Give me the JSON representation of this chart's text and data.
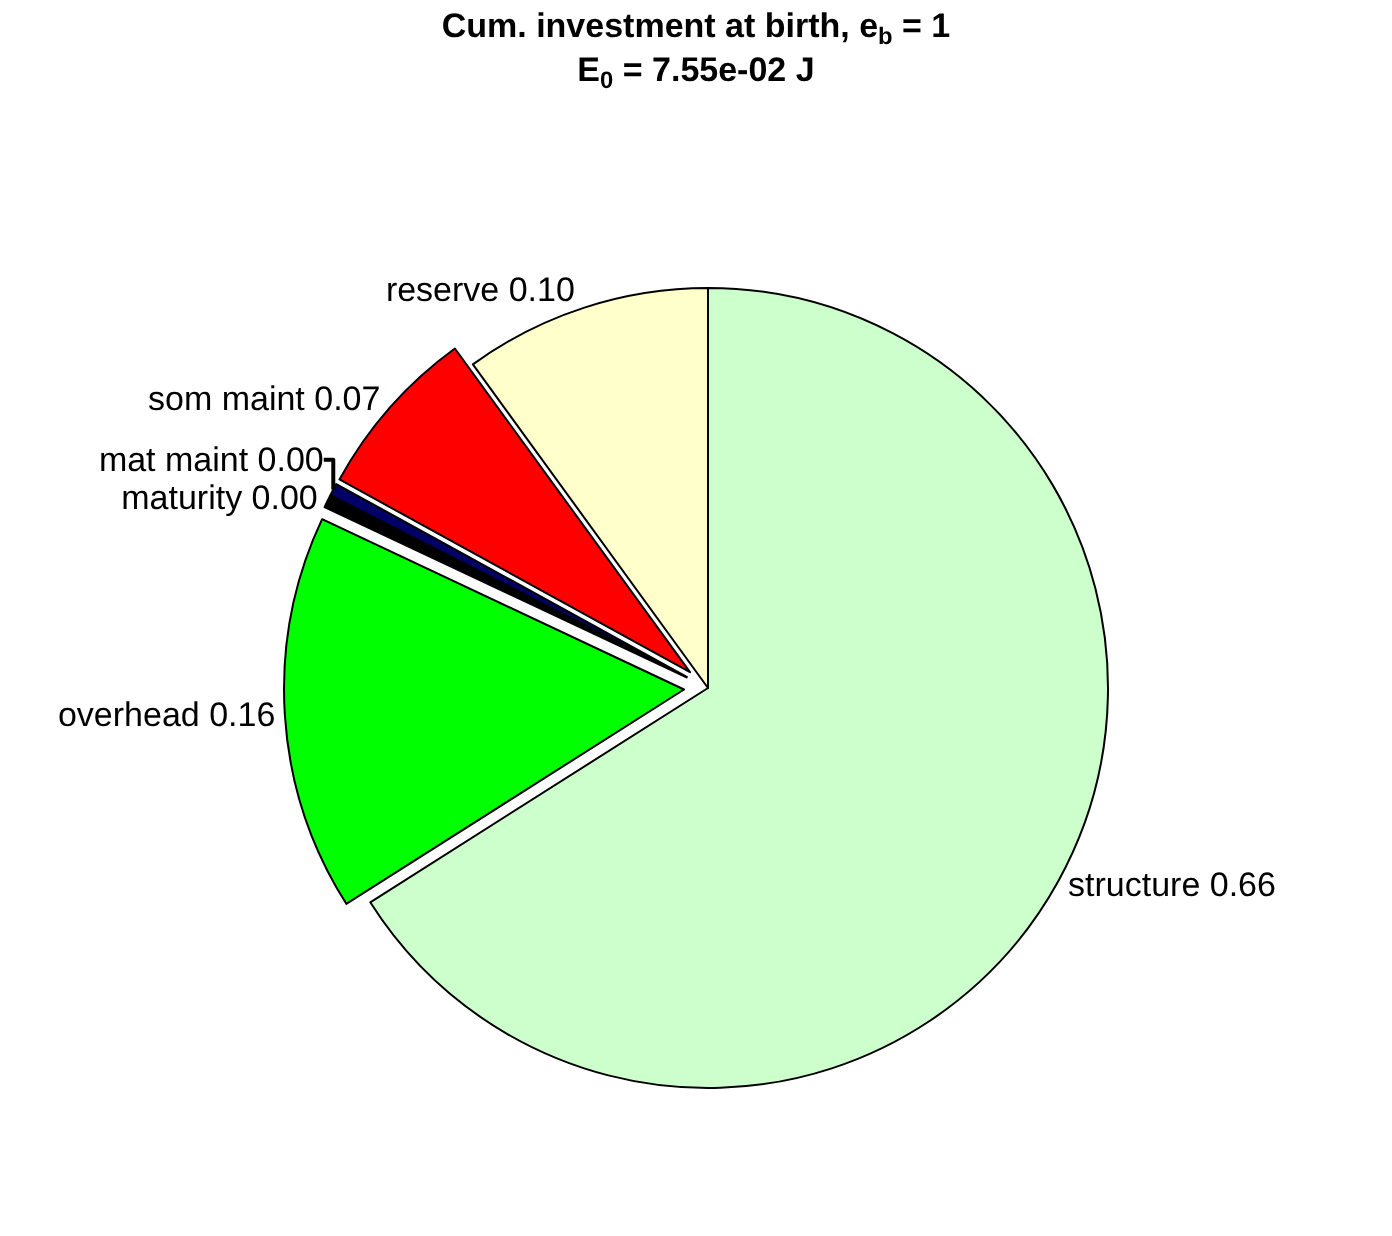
{
  "chart_data": {
    "type": "pie",
    "title": "Cum. investment at birth, e$_{b}$ = 1",
    "subtitle": "E$_{0}$ = 7.55e-02 J",
    "categories": [
      "structure",
      "overhead",
      "maturity",
      "mat maint",
      "som maint",
      "reserve"
    ],
    "values": [
      0.66,
      0.16,
      0.005,
      0.005,
      0.07,
      0.1
    ],
    "value_labels": [
      "0.66",
      "0.16",
      "0.00",
      "0.00",
      "0.07",
      "0.10"
    ],
    "colors": [
      "#ccffcc",
      "#00ff00",
      "#000000",
      "#000066",
      "#ff0000",
      "#ffffcc"
    ],
    "legend": false
  }
}
